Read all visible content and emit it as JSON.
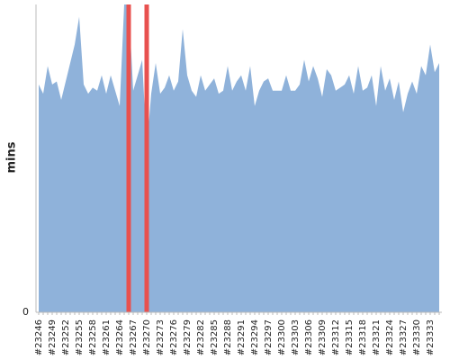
{
  "chart_data": {
    "type": "area",
    "y_label": "mins",
    "categories": [
      "#23246",
      null,
      null,
      "#23249",
      null,
      null,
      "#23252",
      null,
      null,
      "#23255",
      null,
      null,
      "#23258",
      null,
      null,
      "#23261",
      null,
      null,
      "#23264",
      null,
      null,
      "#23267",
      null,
      null,
      "#23270",
      null,
      null,
      "#23273",
      null,
      null,
      "#23276",
      null,
      null,
      "#23279",
      null,
      null,
      "#23282",
      null,
      null,
      "#23285",
      null,
      null,
      "#23288",
      null,
      null,
      "#23291",
      null,
      null,
      "#23294",
      null,
      null,
      "#23297",
      null,
      null,
      "#23300",
      null,
      null,
      "#23303",
      null,
      null,
      "#23306",
      null,
      null,
      "#23309",
      null,
      null,
      "#23312",
      null,
      null,
      "#23315",
      null,
      null,
      "#23318",
      null,
      null,
      "#23321",
      null,
      null,
      "#23324",
      null,
      null,
      "#23327",
      null,
      null,
      "#23330",
      null,
      null,
      "#23333",
      null,
      null
    ],
    "values": [
      74,
      71,
      80,
      74,
      75,
      69,
      75,
      81,
      87,
      96,
      74,
      71,
      73,
      72,
      77,
      71,
      77,
      72,
      67,
      100,
      100,
      72,
      77,
      82,
      53,
      71,
      81,
      71,
      73,
      77,
      72,
      75,
      92,
      77,
      72,
      70,
      77,
      72,
      74,
      76,
      71,
      72,
      80,
      72,
      75,
      77,
      72,
      80,
      67,
      72,
      75,
      76,
      72,
      72,
      72,
      77,
      72,
      72,
      74,
      82,
      75,
      80,
      76,
      70,
      79,
      77,
      72,
      73,
      74,
      77,
      71,
      80,
      72,
      73,
      77,
      67,
      80,
      72,
      76,
      69,
      75,
      65,
      71,
      75,
      71,
      80,
      77,
      87,
      78,
      81
    ],
    "color": "#8fb2da",
    "highlight_indices": [
      20,
      24
    ],
    "highlight_color": "#e8514f",
    "ylim": [
      0,
      100
    ],
    "yticks": [
      0
    ]
  }
}
